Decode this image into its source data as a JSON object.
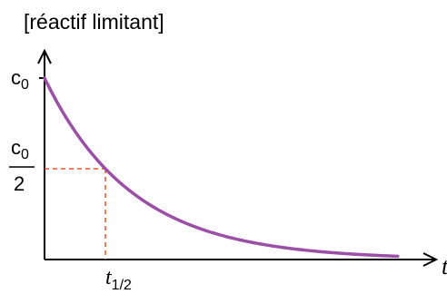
{
  "chart_data": {
    "type": "line",
    "title": "[réactif limitant]",
    "xlabel": "t",
    "y_tick_top": "c",
    "y_tick_top_sub": "0",
    "y_tick_half_num": "c",
    "y_tick_half_num_sub": "0",
    "y_tick_half_den": "2",
    "x_tick_main": "t",
    "x_tick_sub": "1/2",
    "half_life_units": 1,
    "curve_end_half_lives": 5.8,
    "xlim": [
      0,
      6.4
    ],
    "ylim": [
      0,
      1
    ],
    "grid": false,
    "colors": {
      "curve": "#9b4fa6",
      "guide": "#e8552a",
      "axis": "#000000"
    }
  }
}
